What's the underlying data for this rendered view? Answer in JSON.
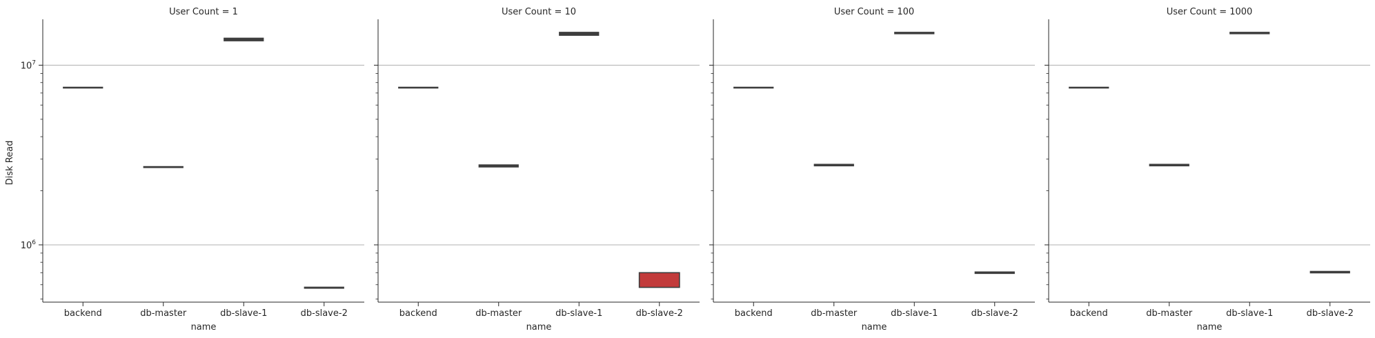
{
  "figure": {
    "ylabel": "Disk Read",
    "xlabel": "name"
  },
  "chart_data": {
    "type": "box",
    "y_scale": "log",
    "ylim": [
      480000,
      18000000
    ],
    "y_ticks_major": [
      {
        "value": 1000000,
        "base": "10",
        "exp": "6"
      },
      {
        "value": 10000000,
        "base": "10",
        "exp": "7"
      }
    ],
    "y_ticks_minor": [
      500000,
      600000,
      700000,
      800000,
      900000,
      2000000,
      3000000,
      4000000,
      5000000,
      6000000,
      7000000,
      8000000,
      9000000
    ],
    "grid": "horizontal-major",
    "categories": [
      "backend",
      "db-master",
      "db-slave-1",
      "db-slave-2"
    ],
    "box_color": "#c23b3b",
    "line_color": "#3d3d3d",
    "panels": [
      {
        "title": "User Count = 1",
        "boxes": [
          {
            "category": "backend",
            "q1": 7480000,
            "median": 7500000,
            "q3": 7520000
          },
          {
            "category": "db-master",
            "q1": 2700000,
            "median": 2710000,
            "q3": 2720000
          },
          {
            "category": "db-slave-1",
            "q1": 13700000,
            "median": 13900000,
            "q3": 14100000
          },
          {
            "category": "db-slave-2",
            "q1": 575000,
            "median": 577000,
            "q3": 580000
          }
        ]
      },
      {
        "title": "User Count = 10",
        "boxes": [
          {
            "category": "backend",
            "q1": 7480000,
            "median": 7500000,
            "q3": 7520000
          },
          {
            "category": "db-master",
            "q1": 2720000,
            "median": 2750000,
            "q3": 2780000
          },
          {
            "category": "db-slave-1",
            "q1": 14700000,
            "median": 14900000,
            "q3": 15200000
          },
          {
            "category": "db-slave-2",
            "q1": 580000,
            "median": 590000,
            "q3": 700000
          }
        ]
      },
      {
        "title": "User Count = 100",
        "boxes": [
          {
            "category": "backend",
            "q1": 7480000,
            "median": 7500000,
            "q3": 7520000
          },
          {
            "category": "db-master",
            "q1": 2760000,
            "median": 2780000,
            "q3": 2800000
          },
          {
            "category": "db-slave-1",
            "q1": 15000000,
            "median": 15100000,
            "q3": 15200000
          },
          {
            "category": "db-slave-2",
            "q1": 695000,
            "median": 700000,
            "q3": 705000
          }
        ]
      },
      {
        "title": "User Count = 1000",
        "boxes": [
          {
            "category": "backend",
            "q1": 7480000,
            "median": 7500000,
            "q3": 7520000
          },
          {
            "category": "db-master",
            "q1": 2760000,
            "median": 2780000,
            "q3": 2800000
          },
          {
            "category": "db-slave-1",
            "q1": 15000000,
            "median": 15100000,
            "q3": 15200000
          },
          {
            "category": "db-slave-2",
            "q1": 700000,
            "median": 705000,
            "q3": 710000
          }
        ]
      }
    ]
  }
}
